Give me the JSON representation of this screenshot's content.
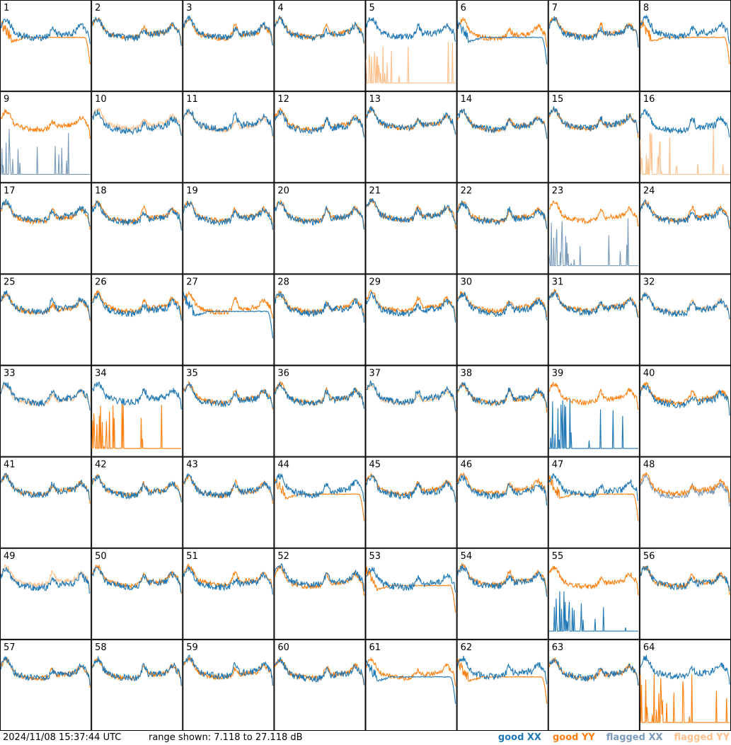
{
  "chart_data": {
    "type": "line",
    "title": "",
    "xlabel": "",
    "ylabel": "",
    "grid_layout": "8x8 small multiples, tiles numbered 1 to 64",
    "ylim_db": [
      7.118,
      27.118
    ],
    "tiles": [
      1,
      2,
      3,
      4,
      5,
      6,
      7,
      8,
      9,
      10,
      11,
      12,
      13,
      14,
      15,
      16,
      17,
      18,
      19,
      20,
      21,
      22,
      23,
      24,
      25,
      26,
      27,
      28,
      29,
      30,
      31,
      32,
      33,
      34,
      35,
      36,
      37,
      38,
      39,
      40,
      41,
      42,
      43,
      44,
      45,
      46,
      47,
      48,
      49,
      50,
      51,
      52,
      53,
      54,
      55,
      56,
      57,
      58,
      59,
      60,
      61,
      62,
      63,
      64
    ],
    "flagged_xx_tiles": [
      9,
      23,
      48
    ],
    "flagged_yy_tiles": [
      5,
      10,
      11,
      16,
      32,
      33,
      37,
      49
    ],
    "anomalous_xx_tiles": [
      6,
      27,
      61
    ],
    "anomalous_yy_tiles": [
      1,
      8,
      44,
      47,
      53,
      62
    ],
    "spiky_xx_tiles": [
      39,
      55
    ],
    "spiky_yy_tiles": [
      34,
      64
    ],
    "legend": [
      {
        "label": "good XX",
        "color": "#1f77b4"
      },
      {
        "label": "good YY",
        "color": "#ff7f0e"
      },
      {
        "label": "flagged XX",
        "color": "#7a9bba"
      },
      {
        "label": "flagged YY",
        "color": "#ffc08c"
      }
    ]
  },
  "footer": {
    "timestamp": "2024/11/08 15:37:44 UTC",
    "range": "range shown: 7.118 to 27.118 dB"
  },
  "colors": {
    "good_xx": "#1f77b4",
    "good_yy": "#ff7f0e",
    "flagged_xx": "#7a9bba",
    "flagged_yy": "#ffc08c",
    "tile_border": "#000000"
  }
}
